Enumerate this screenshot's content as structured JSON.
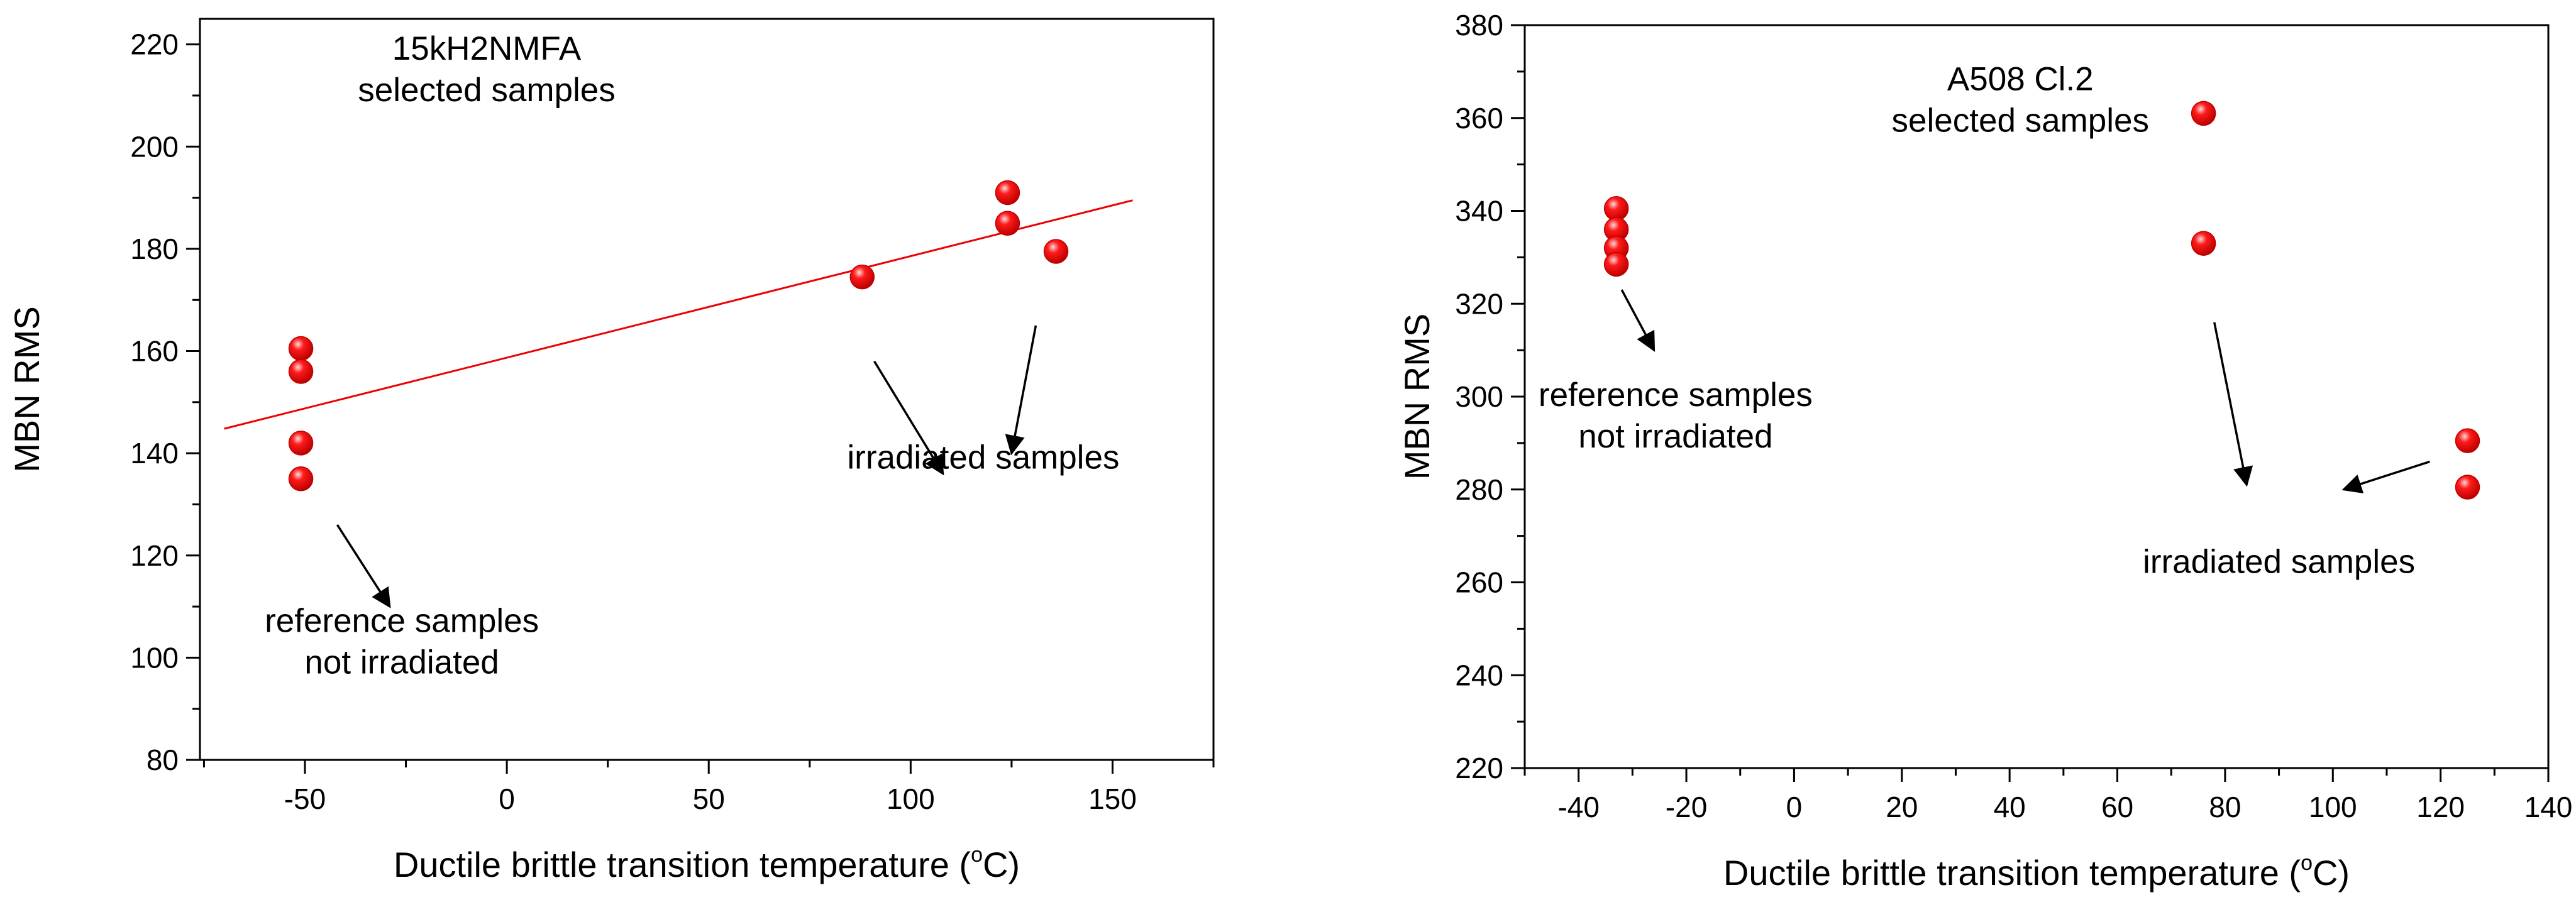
{
  "chart_data": [
    {
      "type": "scatter",
      "title": "15kH2NMFA\nselected samples",
      "xlabel": "Ductile brittle transition temperature  (",
      "xlabel_sup": "o",
      "xlabel_end": "C)",
      "ylabel": "MBN  RMS",
      "xlim": [
        -76,
        175
      ],
      "ylim": [
        80,
        225
      ],
      "xticks": [
        -50,
        0,
        50,
        100,
        150
      ],
      "yticks": [
        80,
        100,
        120,
        140,
        160,
        180,
        200,
        220
      ],
      "xtick_labels": [
        "-50",
        "0",
        "50",
        "100",
        "150"
      ],
      "ytick_labels": [
        "80",
        "100",
        "120",
        "140",
        "160",
        "180",
        "200",
        "220"
      ],
      "points": [
        {
          "x": -51,
          "y": 160.5
        },
        {
          "x": -51,
          "y": 156
        },
        {
          "x": -51,
          "y": 142
        },
        {
          "x": -51,
          "y": 135
        },
        {
          "x": 88,
          "y": 174.5
        },
        {
          "x": 124,
          "y": 191
        },
        {
          "x": 124,
          "y": 185
        },
        {
          "x": 136,
          "y": 179.5
        }
      ],
      "marker_color": "#ee0000",
      "fit_line": {
        "x": [
          -70,
          155
        ],
        "y": [
          144.8,
          189.5
        ],
        "color": "#ee0000"
      },
      "annotations": [
        {
          "lines": [
            "15kH2NMFA",
            "selected samples"
          ],
          "x": -5,
          "y": 217
        },
        {
          "lines": [
            "irradiated samples"
          ],
          "x": 118,
          "y": 137
        },
        {
          "lines": [
            "reference samples",
            "not irradiated"
          ],
          "x": -26,
          "y": 105
        }
      ],
      "arrows": [
        {
          "from": [
            -42,
            126
          ],
          "to": [
            -29,
            110
          ]
        },
        {
          "from": [
            91,
            158
          ],
          "to": [
            108,
            136
          ]
        },
        {
          "from": [
            131,
            165
          ],
          "to": [
            125,
            140
          ]
        }
      ]
    },
    {
      "type": "scatter",
      "title": "A508 Cl.2\nselected samples",
      "xlabel": "Ductile brittle transition temperature  (",
      "xlabel_sup": "o",
      "xlabel_end": "C)",
      "ylabel": "MBN  RMS",
      "xlim": [
        -50,
        140
      ],
      "ylim": [
        220,
        380
      ],
      "xticks": [
        -40,
        -20,
        0,
        20,
        40,
        60,
        80,
        100,
        120,
        140
      ],
      "yticks": [
        220,
        240,
        260,
        280,
        300,
        320,
        340,
        360,
        380
      ],
      "xtick_labels": [
        "-40",
        "-20",
        "0",
        "20",
        "40",
        "60",
        "80",
        "100",
        "120",
        "140"
      ],
      "ytick_labels": [
        "220",
        "240",
        "260",
        "280",
        "300",
        "320",
        "340",
        "360",
        "380"
      ],
      "points": [
        {
          "x": -33,
          "y": 340.5
        },
        {
          "x": -33,
          "y": 336
        },
        {
          "x": -33,
          "y": 332
        },
        {
          "x": -33,
          "y": 328.5
        },
        {
          "x": 76,
          "y": 361
        },
        {
          "x": 76,
          "y": 333
        },
        {
          "x": 125,
          "y": 290.5
        },
        {
          "x": 125,
          "y": 280.5
        }
      ],
      "marker_color": "#ee0000",
      "annotations": [
        {
          "lines": [
            "A508 Cl.2",
            "selected samples"
          ],
          "x": 42,
          "y": 366
        },
        {
          "lines": [
            "reference samples",
            "not irradiated"
          ],
          "x": -22,
          "y": 298
        },
        {
          "lines": [
            "irradiated samples"
          ],
          "x": 90,
          "y": 262
        }
      ],
      "arrows": [
        {
          "from": [
            -32,
            323
          ],
          "to": [
            -26,
            310
          ]
        },
        {
          "from": [
            78,
            316
          ],
          "to": [
            84,
            281
          ]
        },
        {
          "from": [
            118,
            286
          ],
          "to": [
            102,
            280
          ]
        }
      ]
    }
  ]
}
